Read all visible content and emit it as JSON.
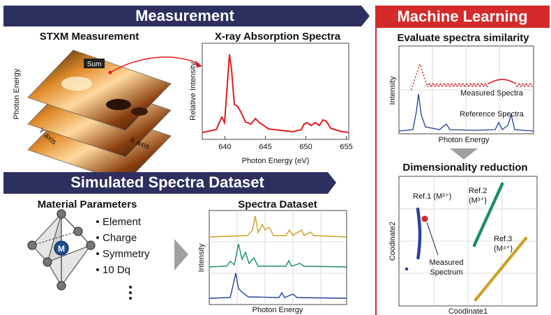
{
  "measurement": {
    "banner": "Measurement",
    "stxm": {
      "title": "STXM Measurement",
      "axis_energy": "Photon Energy",
      "axis_y": "Y axis",
      "axis_x": "X axis",
      "sum": "Sum"
    },
    "xas": {
      "title": "X-ray Absorption Spectra",
      "y_label": "Relative Intensity",
      "x_label": "Photon Energy (eV)",
      "xlim": [
        637.2,
        655.3
      ],
      "xticks": [
        640,
        645,
        650,
        655
      ]
    }
  },
  "simulation": {
    "banner": "Simulated Spectra Dataset",
    "parameters": {
      "title": "Material Parameters",
      "center_ion": "M",
      "items": [
        "Element",
        "Charge",
        "Symmetry",
        "10 Dq"
      ]
    },
    "dataset": {
      "title": "Spectra Dataset",
      "y_label": "Intensity",
      "x_label": "Photon Energy"
    }
  },
  "machine_learning": {
    "banner": "Machine Learning",
    "similarity": {
      "title": "Evaluate spectra similarity",
      "measured": "Measured Spectra",
      "reference": "Reference Spectra",
      "y_label": "Intensity",
      "x_label": "Photon Energy"
    },
    "reduction": {
      "title": "Dimensionality reduction",
      "y_label": "Coodinate2",
      "x_label": "Coodinate1",
      "ref1": "Ref.1 (M²⁺)",
      "ref2": {
        "name": "Ref.2",
        "charge": "(M³⁺)"
      },
      "ref3": {
        "name": "Ref.3",
        "charge": "(M⁴⁺)"
      },
      "measured": [
        "Measured",
        "Spectrum"
      ]
    }
  }
}
